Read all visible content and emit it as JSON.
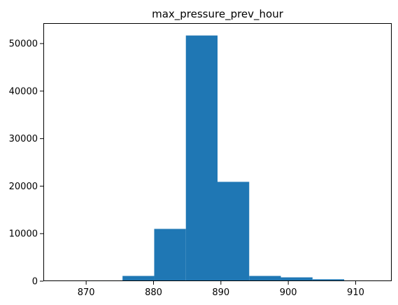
{
  "chart_data": {
    "type": "bar",
    "title": "max_pressure_prev_hour",
    "xlabel": "",
    "ylabel": "",
    "bins": [
      {
        "start": 866.0,
        "end": 870.7,
        "count": 0
      },
      {
        "start": 870.7,
        "end": 875.4,
        "count": 150
      },
      {
        "start": 875.4,
        "end": 880.1,
        "count": 1100
      },
      {
        "start": 880.1,
        "end": 884.8,
        "count": 11000
      },
      {
        "start": 884.8,
        "end": 889.5,
        "count": 51700
      },
      {
        "start": 889.5,
        "end": 894.2,
        "count": 20900
      },
      {
        "start": 894.2,
        "end": 898.9,
        "count": 1100
      },
      {
        "start": 898.9,
        "end": 903.6,
        "count": 800
      },
      {
        "start": 903.6,
        "end": 908.3,
        "count": 400
      },
      {
        "start": 908.3,
        "end": 913.0,
        "count": 0
      }
    ],
    "xlim": [
      863.65,
      915.35
    ],
    "ylim": [
      0,
      54300
    ],
    "xticks": [
      870,
      880,
      890,
      900,
      910
    ],
    "yticks": [
      0,
      10000,
      20000,
      30000,
      40000,
      50000
    ],
    "bar_color": "#1f77b4",
    "grid": false
  }
}
